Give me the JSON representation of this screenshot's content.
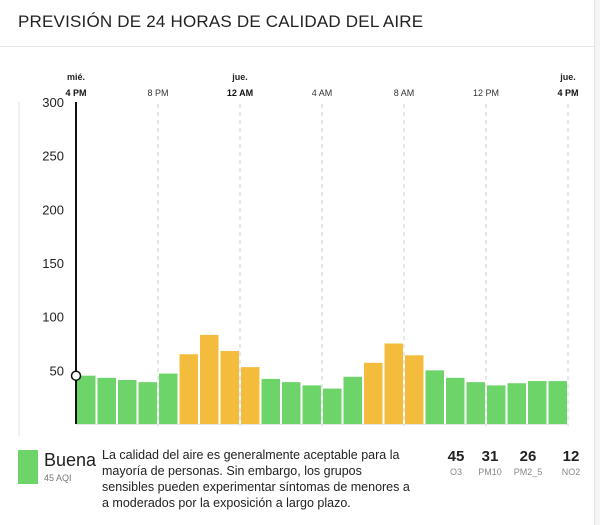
{
  "header": {
    "title": "PREVISIÓN DE 24 HORAS DE CALIDAD DEL AIRE"
  },
  "chart_data": {
    "type": "bar",
    "title": "PREVISIÓN DE 24 HORAS DE CALIDAD DEL AIRE",
    "ylim": [
      0,
      300
    ],
    "yticks": [
      50,
      100,
      150,
      200,
      250,
      300
    ],
    "xticks": [
      {
        "hour": 0,
        "day": "mié.",
        "time": "4 PM",
        "bold": true
      },
      {
        "hour": 4,
        "day": "",
        "time": "8 PM",
        "bold": false
      },
      {
        "hour": 8,
        "day": "jue.",
        "time": "12 AM",
        "bold": true
      },
      {
        "hour": 12,
        "day": "",
        "time": "4 AM",
        "bold": false
      },
      {
        "hour": 16,
        "day": "",
        "time": "8 AM",
        "bold": false
      },
      {
        "hour": 20,
        "day": "",
        "time": "12 PM",
        "bold": false
      },
      {
        "hour": 24,
        "day": "jue.",
        "time": "4 PM",
        "bold": true
      }
    ],
    "hours": 24,
    "values": [
      45,
      43,
      41,
      39,
      47,
      65,
      83,
      68,
      53,
      42,
      39,
      36,
      33,
      44,
      57,
      75,
      64,
      50,
      43,
      39,
      36,
      38,
      40,
      40
    ],
    "colors": {
      "good": "#6dd46a",
      "moderate": "#f3bc3d"
    },
    "moderate_threshold": 50,
    "current_value": 45
  },
  "footer": {
    "category": "Buena",
    "aqi": "45 AQI",
    "description": "La calidad del aire es generalmente aceptable para la mayoría de personas. Sin embargo, los grupos sensibles pueden experimentar síntomas de menores a a moderados por la exposición a largo plazo.",
    "pollutants": [
      {
        "value": "45",
        "name": "O3"
      },
      {
        "value": "31",
        "name": "PM10"
      },
      {
        "value": "26",
        "name": "PM2_5"
      },
      {
        "value": "12",
        "name": "NO2"
      }
    ]
  }
}
